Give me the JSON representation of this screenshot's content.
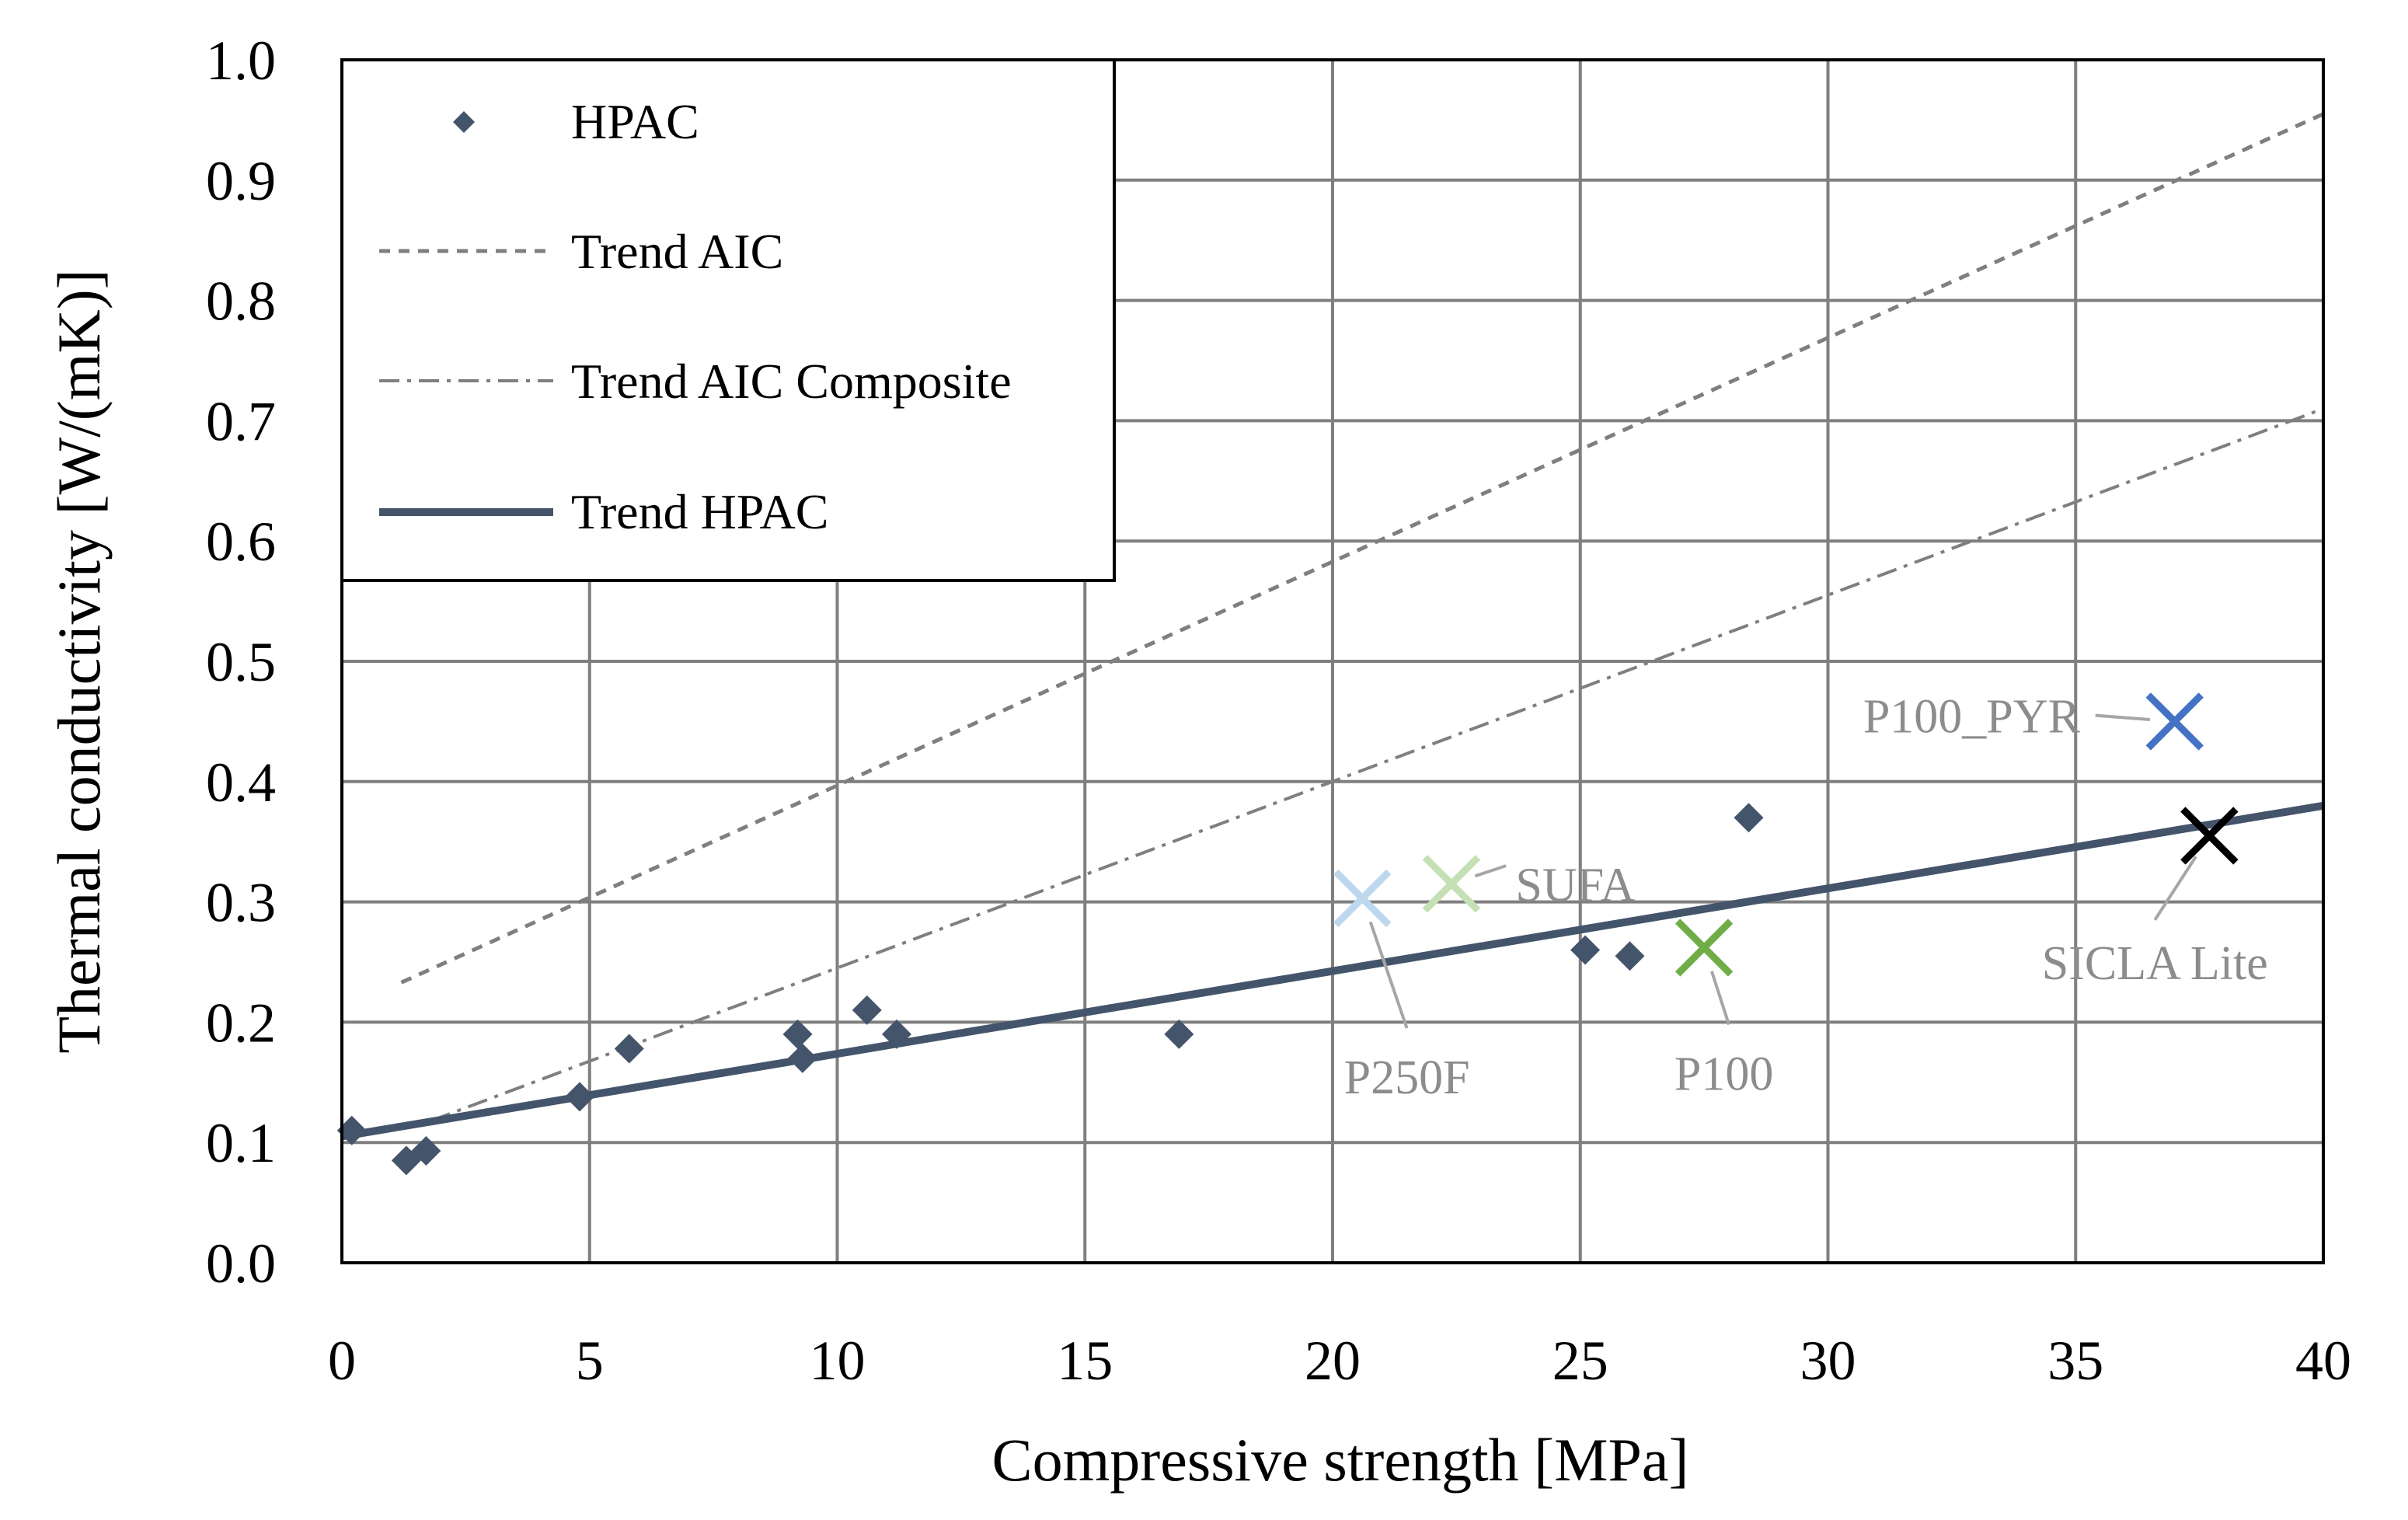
{
  "chart_data": {
    "type": "scatter",
    "title": "",
    "xlabel": "Compressive strength [MPa]",
    "ylabel": "Thermal conductivity [W/(mK)]",
    "xlim": [
      0,
      40
    ],
    "ylim": [
      0,
      1.0
    ],
    "xticks": [
      0,
      5,
      10,
      15,
      20,
      25,
      30,
      35,
      40
    ],
    "yticks": [
      0.0,
      0.1,
      0.2,
      0.3,
      0.4,
      0.5,
      0.6,
      0.7,
      0.8,
      0.9,
      1.0
    ],
    "xtick_labels": [
      "0",
      "5",
      "10",
      "15",
      "20",
      "25",
      "30",
      "35",
      "40"
    ],
    "ytick_labels": [
      "0.0",
      "0.1",
      "0.2",
      "0.3",
      "0.4",
      "0.5",
      "0.6",
      "0.7",
      "0.8",
      "0.9",
      "1.0"
    ],
    "grid": true,
    "legend_position": "top-left",
    "legend": [
      "HPAC",
      "Trend AIC",
      "Trend AIC Composite",
      "Trend HPAC"
    ],
    "series": [
      {
        "name": "HPAC",
        "kind": "markers",
        "marker": "diamond",
        "color": "#44546a",
        "x": [
          0.2,
          1.3,
          1.7,
          4.8,
          5.8,
          9.2,
          9.3,
          10.6,
          11.2,
          16.9,
          25.1,
          26.0,
          28.4
        ],
        "y": [
          0.11,
          0.085,
          0.093,
          0.138,
          0.178,
          0.19,
          0.17,
          0.21,
          0.19,
          0.19,
          0.26,
          0.255,
          0.37
        ]
      },
      {
        "name": "Trend AIC",
        "kind": "line",
        "style": "dashed",
        "color": "#7f7f7f",
        "x": [
          1.2,
          40
        ],
        "y": [
          0.233,
          0.955
        ]
      },
      {
        "name": "Trend AIC Composite",
        "kind": "line",
        "style": "dashdot",
        "color": "#7f7f7f",
        "x": [
          1.8,
          40
        ],
        "y": [
          0.118,
          0.71
        ]
      },
      {
        "name": "Trend HPAC",
        "kind": "line",
        "style": "solid",
        "color": "#44546a",
        "x": [
          0,
          40
        ],
        "y": [
          0.105,
          0.38
        ]
      }
    ],
    "highlight_points": [
      {
        "label": "P250F",
        "x": 20.6,
        "y": 0.303,
        "color": "#bdd7ee",
        "label_pos": [
          21.5,
          0.155
        ],
        "line_to": [
          21.5,
          0.195
        ]
      },
      {
        "label": "SUFA",
        "x": 22.4,
        "y": 0.315,
        "color": "#c5e0b4",
        "label_pos": [
          24.9,
          0.315
        ],
        "line_to": [
          23.5,
          0.33
        ]
      },
      {
        "label": "P100",
        "x": 27.5,
        "y": 0.262,
        "color": "#70ad47",
        "label_pos": [
          27.9,
          0.158
        ],
        "line_to": [
          28.0,
          0.198
        ]
      },
      {
        "label": "P100_PYR",
        "x": 37.0,
        "y": 0.45,
        "color": "#4472c4",
        "label_pos": [
          32.9,
          0.455
        ],
        "line_to": [
          35.4,
          0.455
        ]
      },
      {
        "label": "SICLA Lite",
        "x": 37.7,
        "y": 0.355,
        "color": "#000000",
        "label_pos": [
          36.6,
          0.25
        ],
        "line_to": [
          36.6,
          0.285
        ]
      }
    ]
  }
}
